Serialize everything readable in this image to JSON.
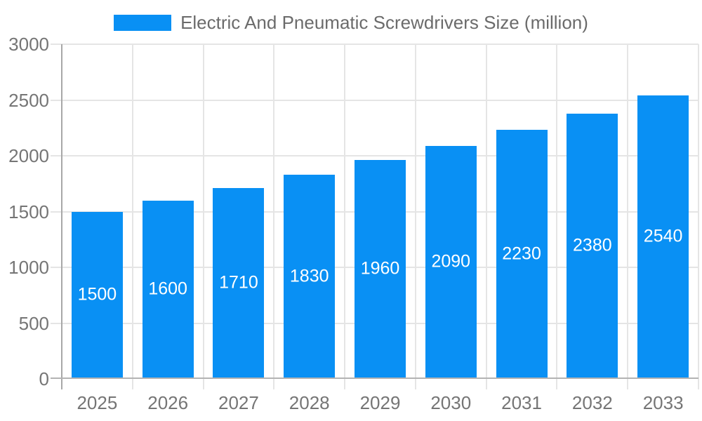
{
  "chart_data": {
    "type": "bar",
    "title": "Electric And Pneumatic Screwdrivers Size (million)",
    "legend": {
      "label": "Electric And Pneumatic Screwdrivers Size (million)",
      "position": "top"
    },
    "categories": [
      "2025",
      "2026",
      "2027",
      "2028",
      "2029",
      "2030",
      "2031",
      "2032",
      "2033"
    ],
    "series": [
      {
        "name": "Electric And Pneumatic Screwdrivers Size (million)",
        "values": [
          1500,
          1600,
          1710,
          1830,
          1960,
          2090,
          2230,
          2380,
          2540
        ]
      }
    ],
    "value_labels": [
      "1500",
      "1600",
      "1710",
      "1830",
      "1960",
      "2090",
      "2230",
      "2380",
      "2540"
    ],
    "xlabel": "",
    "ylabel": "",
    "ylim": [
      0,
      3000
    ],
    "yticks": [
      0,
      500,
      1000,
      1500,
      2000,
      2500,
      3000
    ],
    "grid": true,
    "colors": {
      "bar": "#0990f4",
      "value_label": "#ffffff",
      "axis_text": "#757575",
      "legend_text": "#6b6b6b",
      "gridline": "#e5e5e5",
      "axis_line": "#a8a8a8",
      "baseline": "#b3b3b3",
      "background": "#ffffff"
    }
  }
}
